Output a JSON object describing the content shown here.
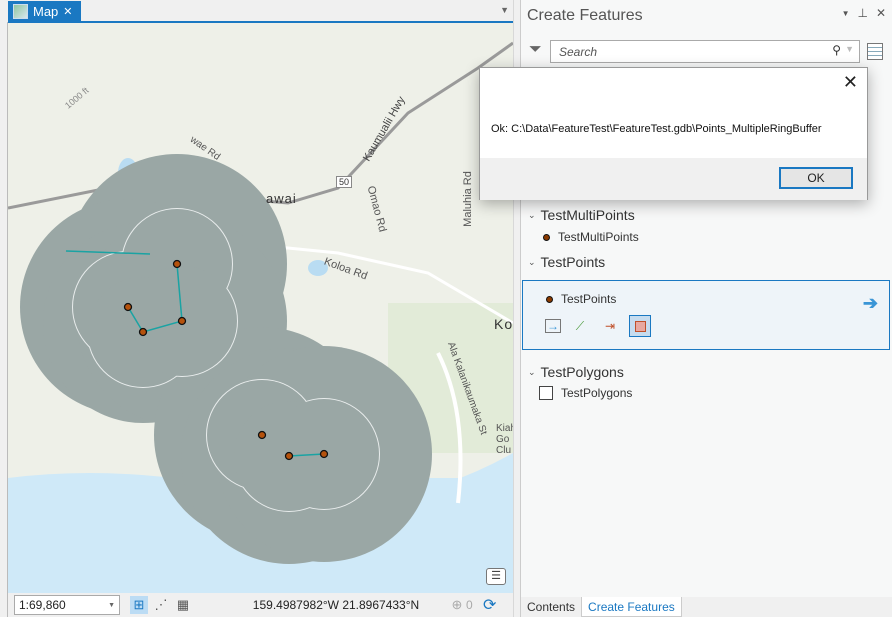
{
  "map_tab": {
    "label": "Map",
    "close": "✕"
  },
  "map": {
    "labels": {
      "hwy": "Kaumualii Hwy",
      "route": "50",
      "town": "awai",
      "koloa_rd": "Koloa Rd",
      "omao_rd": "Omao Rd",
      "maluhia_rd": "Maluhia Rd",
      "ala_st": "Ala Kalanikaumaka St",
      "koloa": "Kolo",
      "golf": "Kiahu Go Clu",
      "contour": "1000 ft",
      "wae_rd": "wae Rd"
    },
    "buffer_color": "#9aa7a5",
    "line_color": "#1aa3a3",
    "point_color": "#b5520c"
  },
  "statusbar": {
    "scale": "1:69,860",
    "coords": "159.4987982°W 21.8967433°N",
    "selected_count": "0"
  },
  "panel": {
    "title": "Create Features",
    "search_placeholder": "Search",
    "groups": [
      {
        "label": "TestMultiPoints",
        "item": "TestMultiPoints"
      },
      {
        "label": "TestPoints",
        "item": "TestPoints"
      },
      {
        "label": "TestPolygons",
        "item": "TestPolygons"
      }
    ],
    "tabs": [
      "Contents",
      "Create Features"
    ]
  },
  "dialog": {
    "message": "Ok: C:\\Data\\FeatureTest\\FeatureTest.gdb\\Points_MultipleRingBuffer",
    "ok": "OK",
    "close": "✕"
  }
}
